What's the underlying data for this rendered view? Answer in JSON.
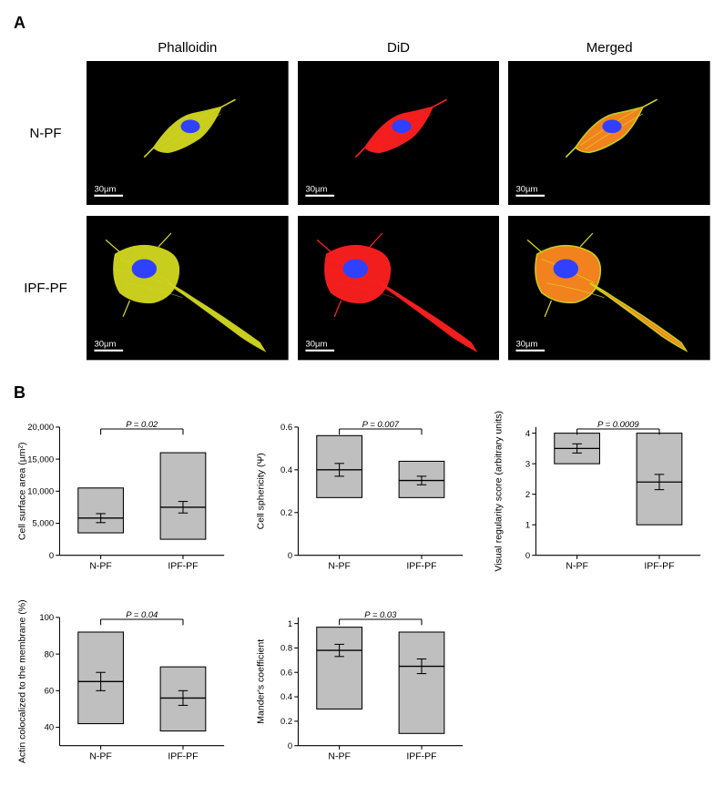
{
  "panelA": {
    "label": "A",
    "columns": [
      "Phalloidin",
      "DiD",
      "Merged"
    ],
    "rows": [
      "N-PF",
      "IPF-PF"
    ],
    "scalebar_label": "30µm",
    "scalebar_color": "#ffffff",
    "background": "#000000",
    "nucleus_color": "#3040ff",
    "channel_colors": {
      "phalloidin": "#d4d820",
      "did": "#ff2020",
      "merged_body": "#ff8a20",
      "merged_edge": "#d4d820"
    }
  },
  "panelB": {
    "label": "B",
    "charts": [
      {
        "id": "surface_area",
        "ylabel": "Cell surface area (µm²)",
        "p_text": "P = 0.02",
        "categories": [
          "N-PF",
          "IPF-PF"
        ],
        "ylim": [
          0,
          20000
        ],
        "yticks": [
          0,
          5000,
          10000,
          15000,
          20000
        ],
        "ytick_labels": [
          "0",
          "5,000",
          "10,000",
          "15,000",
          "20,000"
        ],
        "bars": [
          {
            "box_low": 3500,
            "box_high": 10500,
            "mean": 5800,
            "err": 700
          },
          {
            "box_low": 2500,
            "box_high": 16000,
            "mean": 7500,
            "err": 900
          }
        ],
        "bar_fill": "#bfbfbf",
        "bar_stroke": "#000000",
        "axis_color": "#000000",
        "label_fontsize": 10,
        "tick_fontsize": 9
      },
      {
        "id": "sphericity",
        "ylabel": "Cell sphericity (Ψ)",
        "p_text": "P = 0.007",
        "categories": [
          "N-PF",
          "IPF-PF"
        ],
        "ylim": [
          0,
          0.6
        ],
        "yticks": [
          0,
          0.2,
          0.4,
          0.6
        ],
        "ytick_labels": [
          "0",
          "0.2",
          "0.4",
          "0.6"
        ],
        "bars": [
          {
            "box_low": 0.27,
            "box_high": 0.56,
            "mean": 0.4,
            "err": 0.03
          },
          {
            "box_low": 0.27,
            "box_high": 0.44,
            "mean": 0.35,
            "err": 0.02
          }
        ],
        "bar_fill": "#bfbfbf",
        "bar_stroke": "#000000",
        "axis_color": "#000000",
        "label_fontsize": 10,
        "tick_fontsize": 9
      },
      {
        "id": "regularity",
        "ylabel": "Visual regularity score (arbitrary units)",
        "p_text": "P = 0.0009",
        "categories": [
          "N-PF",
          "IPF-PF"
        ],
        "ylim": [
          0,
          4.2
        ],
        "yticks": [
          0,
          1,
          2,
          3,
          4
        ],
        "ytick_labels": [
          "0",
          "1",
          "2",
          "3",
          "4"
        ],
        "bars": [
          {
            "box_low": 3.0,
            "box_high": 4.0,
            "mean": 3.5,
            "err": 0.15
          },
          {
            "box_low": 1.0,
            "box_high": 4.0,
            "mean": 2.4,
            "err": 0.25
          }
        ],
        "bar_fill": "#bfbfbf",
        "bar_stroke": "#000000",
        "axis_color": "#000000",
        "label_fontsize": 10,
        "tick_fontsize": 9
      },
      {
        "id": "actin_coloc",
        "ylabel": "Actin colocalized to the membrane (%)",
        "p_text": "P = 0.04",
        "categories": [
          "N-PF",
          "IPF-PF"
        ],
        "ylim": [
          30,
          100
        ],
        "yticks": [
          40,
          60,
          80,
          100
        ],
        "ytick_labels": [
          "40",
          "60",
          "80",
          "100"
        ],
        "bars": [
          {
            "box_low": 42,
            "box_high": 92,
            "mean": 65,
            "err": 5
          },
          {
            "box_low": 38,
            "box_high": 73,
            "mean": 56,
            "err": 4
          }
        ],
        "bar_fill": "#bfbfbf",
        "bar_stroke": "#000000",
        "axis_color": "#000000",
        "label_fontsize": 10,
        "tick_fontsize": 9
      },
      {
        "id": "manders",
        "ylabel": "Mander's coefficient",
        "p_text": "P = 0.03",
        "categories": [
          "N-PF",
          "IPF-PF"
        ],
        "ylim": [
          0,
          1.05
        ],
        "yticks": [
          0,
          0.2,
          0.4,
          0.6,
          0.8,
          1
        ],
        "ytick_labels": [
          "0",
          "0.2",
          "0.4",
          "0.6",
          "0.8",
          "1"
        ],
        "bars": [
          {
            "box_low": 0.3,
            "box_high": 0.97,
            "mean": 0.78,
            "err": 0.05
          },
          {
            "box_low": 0.1,
            "box_high": 0.93,
            "mean": 0.65,
            "err": 0.06
          }
        ],
        "bar_fill": "#bfbfbf",
        "bar_stroke": "#000000",
        "axis_color": "#000000",
        "label_fontsize": 10,
        "tick_fontsize": 9
      }
    ]
  }
}
